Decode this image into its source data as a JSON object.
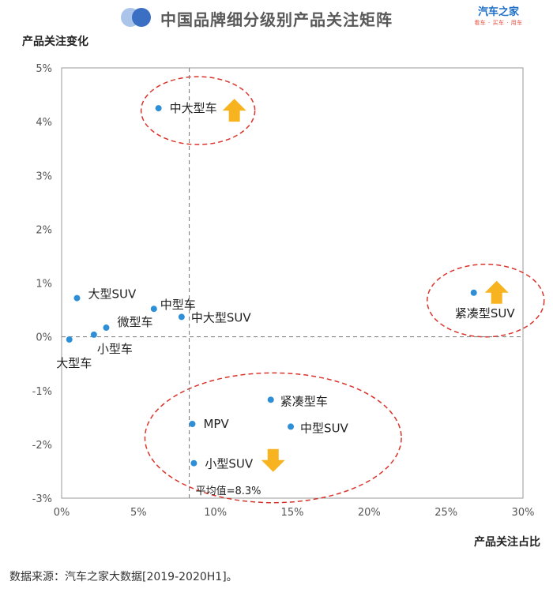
{
  "header": {
    "title": "中国品牌细分级别产品关注矩阵",
    "logo_main": "汽车之家",
    "logo_sub": "看车 · 买车 · 用车"
  },
  "footer": {
    "source": "数据来源：汽车之家大数据[2019-2020H1]。"
  },
  "colors": {
    "point": "#2f8fd6",
    "ellipse": "#d9342b",
    "arrow": "#f7b320",
    "axis": "#777777",
    "title_icon_light": "#aac4ea",
    "title_icon_dark": "#3a6fc4"
  },
  "chart_data": {
    "type": "scatter",
    "title": "中国品牌细分级别产品关注矩阵",
    "xlabel": "产品关注占比",
    "ylabel": "产品关注变化",
    "xlim": [
      0,
      30
    ],
    "ylim": [
      -3,
      5
    ],
    "xticks": [
      "0%",
      "5%",
      "10%",
      "15%",
      "20%",
      "25%",
      "30%"
    ],
    "yticks": [
      "-3%",
      "-2%",
      "-1%",
      "0%",
      "1%",
      "2%",
      "3%",
      "4%",
      "5%"
    ],
    "average_line": {
      "x": 8.3,
      "label": "平均值=8.3%"
    },
    "points": [
      {
        "name": "中大型车",
        "x": 6.3,
        "y": 4.25
      },
      {
        "name": "大型SUV",
        "x": 1.0,
        "y": 0.72
      },
      {
        "name": "中型车",
        "x": 6.0,
        "y": 0.52
      },
      {
        "name": "中大型SUV",
        "x": 7.8,
        "y": 0.37
      },
      {
        "name": "微型车",
        "x": 2.9,
        "y": 0.17
      },
      {
        "name": "小型车",
        "x": 2.1,
        "y": 0.04
      },
      {
        "name": "大型车",
        "x": 0.5,
        "y": -0.05
      },
      {
        "name": "紧凑型SUV",
        "x": 26.8,
        "y": 0.82
      },
      {
        "name": "紧凑型车",
        "x": 13.6,
        "y": -1.17
      },
      {
        "name": "MPV",
        "x": 8.5,
        "y": -1.62
      },
      {
        "name": "中型SUV",
        "x": 14.9,
        "y": -1.67
      },
      {
        "name": "小型SUV",
        "x": 8.6,
        "y": -2.35
      }
    ],
    "groups": [
      {
        "members": [
          "中大型车"
        ],
        "trend": "up"
      },
      {
        "members": [
          "紧凑型SUV"
        ],
        "trend": "up"
      },
      {
        "members": [
          "紧凑型车",
          "MPV",
          "中型SUV",
          "小型SUV"
        ],
        "trend": "down"
      }
    ],
    "grid": false,
    "legend": "none"
  }
}
